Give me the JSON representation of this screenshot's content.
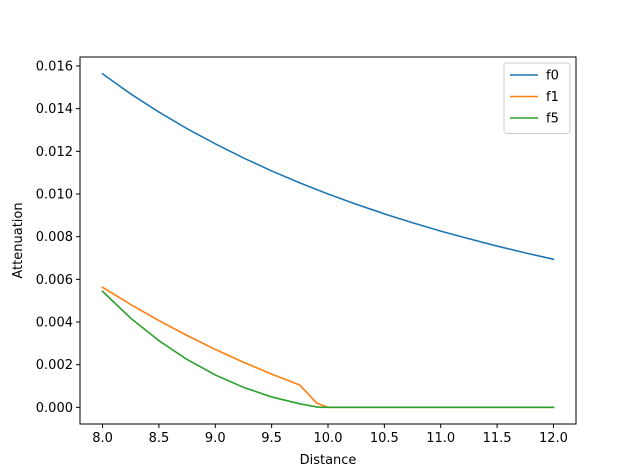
{
  "chart_data": {
    "type": "line",
    "title": "",
    "xlabel": "Distance",
    "ylabel": "Attenuation",
    "xlim": [
      7.8,
      12.2
    ],
    "ylim": [
      -0.00078,
      0.01642
    ],
    "x_ticks": [
      8.0,
      8.5,
      9.0,
      9.5,
      10.0,
      10.5,
      11.0,
      11.5,
      12.0
    ],
    "x_tick_labels": [
      "8.0",
      "8.5",
      "9.0",
      "9.5",
      "10.0",
      "10.5",
      "11.0",
      "11.5",
      "12.0"
    ],
    "y_ticks": [
      0.0,
      0.002,
      0.004,
      0.006,
      0.008,
      0.01,
      0.012,
      0.014,
      0.016
    ],
    "y_tick_labels": [
      "0.000",
      "0.002",
      "0.004",
      "0.006",
      "0.008",
      "0.010",
      "0.012",
      "0.014",
      "0.016"
    ],
    "grid": false,
    "legend_position": "top-right",
    "x": [
      8.0,
      8.25,
      8.5,
      8.75,
      9.0,
      9.25,
      9.5,
      9.75,
      10.0,
      10.25,
      10.5,
      10.75,
      11.0,
      11.25,
      11.5,
      11.75,
      12.0
    ],
    "series": [
      {
        "name": "f0",
        "color": "#1f77b4",
        "values": [
          0.01563,
          0.01469,
          0.01384,
          0.01306,
          0.01235,
          0.01169,
          0.01108,
          0.01052,
          0.01,
          0.00952,
          0.00907,
          0.00865,
          0.00826,
          0.0079,
          0.00756,
          0.00724,
          0.00694
        ]
      },
      {
        "name": "f1",
        "color": "#ff7f0e",
        "values": [
          0.005625,
          0.00482,
          0.004069,
          0.003367,
          0.002716,
          0.002115,
          0.001559,
          0.001047,
          0.0,
          0.0,
          0.0,
          0.0,
          0.0,
          0.0,
          0.0,
          0.0,
          0.0
        ],
        "extra_points": [
          [
            9.9,
            0.000203
          ],
          [
            9.95,
            0.000101
          ]
        ]
      },
      {
        "name": "f5",
        "color": "#2ca02c",
        "values": [
          0.005438,
          0.004178,
          0.003125,
          0.002244,
          0.001519,
          0.000939,
          0.000488,
          0.000167,
          0.0,
          0.0,
          0.0,
          0.0,
          0.0,
          0.0,
          0.0,
          0.0,
          0.0
        ],
        "extra_points": [
          [
            9.9,
            1.93e-05
          ],
          [
            9.95,
            2.4e-06
          ]
        ]
      }
    ]
  }
}
